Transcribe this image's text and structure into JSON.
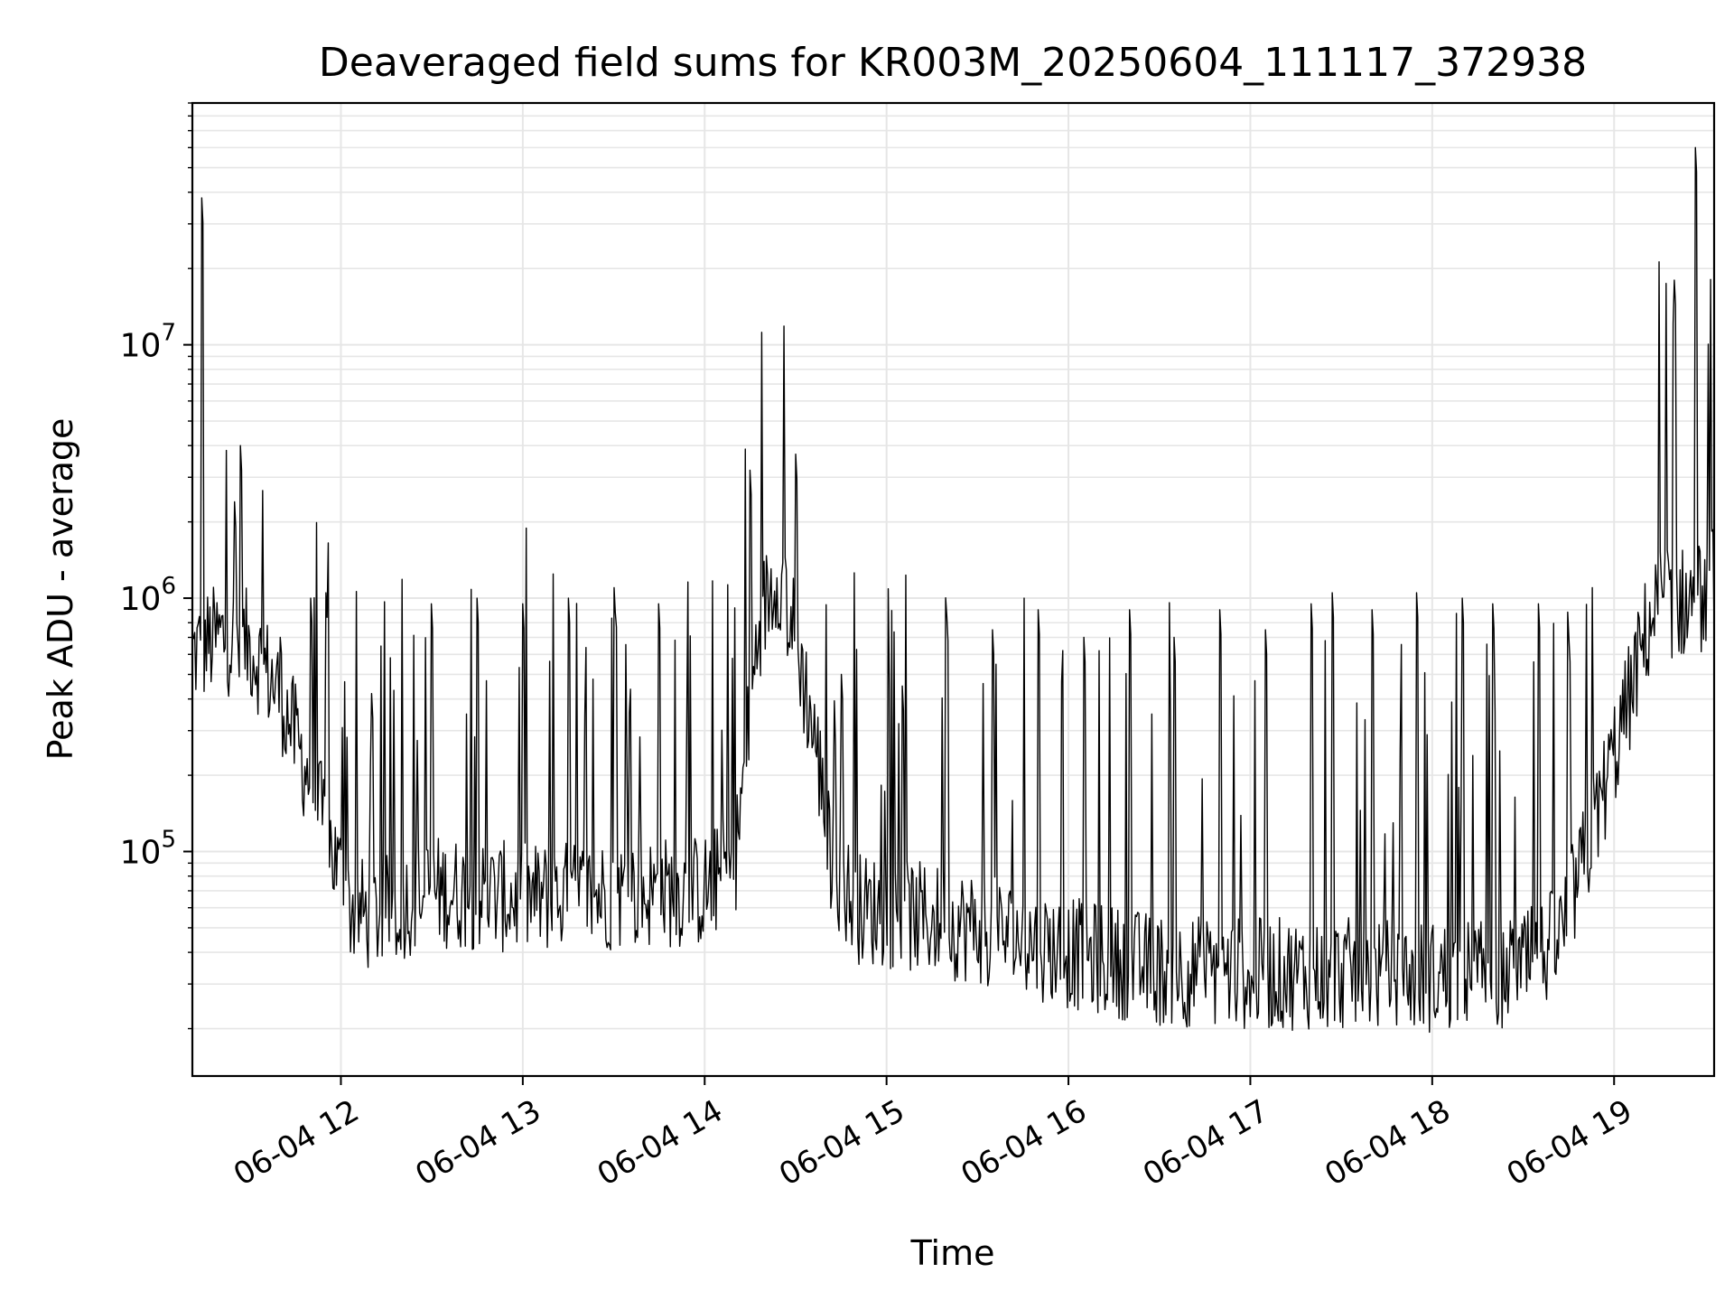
{
  "chart_data": {
    "type": "line",
    "title": "Deaveraged field sums for KR003M_20250604_111117_372938",
    "xlabel": "Time",
    "ylabel": "Peak ADU - average",
    "y_scale": "log",
    "grid": true,
    "grid_minor": true,
    "line_color": "#000000",
    "xlim": [
      "2025-06-04 11:11",
      "2025-06-04 19:33"
    ],
    "ylim": [
      13000,
      90000000
    ],
    "x_ticks": [
      {
        "value": "2025-06-04 12:00",
        "label": "06-04 12"
      },
      {
        "value": "2025-06-04 13:00",
        "label": "06-04 13"
      },
      {
        "value": "2025-06-04 14:00",
        "label": "06-04 14"
      },
      {
        "value": "2025-06-04 15:00",
        "label": "06-04 15"
      },
      {
        "value": "2025-06-04 16:00",
        "label": "06-04 16"
      },
      {
        "value": "2025-06-04 17:00",
        "label": "06-04 17"
      },
      {
        "value": "2025-06-04 18:00",
        "label": "06-04 18"
      },
      {
        "value": "2025-06-04 19:00",
        "label": "06-04 19"
      }
    ],
    "y_ticks": [
      {
        "value": 100000,
        "base": "10",
        "exp": "5"
      },
      {
        "value": 1000000,
        "base": "10",
        "exp": "6"
      },
      {
        "value": 10000000,
        "base": "10",
        "exp": "7"
      }
    ],
    "series": [
      {
        "baseline": [
          {
            "x": "2025-06-04 11:11",
            "y": 600000
          },
          {
            "x": "2025-06-04 11:20",
            "y": 700000
          },
          {
            "x": "2025-06-04 11:30",
            "y": 650000
          },
          {
            "x": "2025-06-04 11:40",
            "y": 420000
          },
          {
            "x": "2025-06-04 11:48",
            "y": 220000
          },
          {
            "x": "2025-06-04 11:55",
            "y": 120000
          },
          {
            "x": "2025-06-04 12:03",
            "y": 60000
          },
          {
            "x": "2025-06-04 12:10",
            "y": 55000
          },
          {
            "x": "2025-06-04 12:30",
            "y": 70000
          },
          {
            "x": "2025-06-04 13:00",
            "y": 65000
          },
          {
            "x": "2025-06-04 13:30",
            "y": 68000
          },
          {
            "x": "2025-06-04 14:00",
            "y": 70000
          },
          {
            "x": "2025-06-04 14:10",
            "y": 90000
          },
          {
            "x": "2025-06-04 14:18",
            "y": 800000
          },
          {
            "x": "2025-06-04 14:24",
            "y": 1300000
          },
          {
            "x": "2025-06-04 14:30",
            "y": 700000
          },
          {
            "x": "2025-06-04 14:37",
            "y": 250000
          },
          {
            "x": "2025-06-04 14:42",
            "y": 90000
          },
          {
            "x": "2025-06-04 14:50",
            "y": 60000
          },
          {
            "x": "2025-06-04 15:30",
            "y": 50000
          },
          {
            "x": "2025-06-04 16:00",
            "y": 40000
          },
          {
            "x": "2025-06-04 16:30",
            "y": 34000
          },
          {
            "x": "2025-06-04 17:00",
            "y": 33000
          },
          {
            "x": "2025-06-04 17:30",
            "y": 33000
          },
          {
            "x": "2025-06-04 18:00",
            "y": 32000
          },
          {
            "x": "2025-06-04 18:30",
            "y": 34000
          },
          {
            "x": "2025-06-04 18:42",
            "y": 45000
          },
          {
            "x": "2025-06-04 18:50",
            "y": 90000
          },
          {
            "x": "2025-06-04 18:58",
            "y": 200000
          },
          {
            "x": "2025-06-04 19:05",
            "y": 400000
          },
          {
            "x": "2025-06-04 19:10",
            "y": 700000
          },
          {
            "x": "2025-06-04 19:15",
            "y": 1000000
          },
          {
            "x": "2025-06-04 19:20",
            "y": 950000
          },
          {
            "x": "2025-06-04 19:30",
            "y": 1000000
          },
          {
            "x": "2025-06-04 19:33",
            "y": 1200000
          }
        ],
        "spikes": [
          {
            "x": "2025-06-04 11:14",
            "y": 38000000
          },
          {
            "x": "2025-06-04 11:25",
            "y": 2400000
          },
          {
            "x": "2025-06-04 11:27",
            "y": 4000000
          },
          {
            "x": "2025-06-04 11:40",
            "y": 700000
          },
          {
            "x": "2025-06-04 11:50",
            "y": 1000000
          },
          {
            "x": "2025-06-04 11:55",
            "y": 1050000
          },
          {
            "x": "2025-06-04 12:10",
            "y": 420000
          },
          {
            "x": "2025-06-04 12:30",
            "y": 950000
          },
          {
            "x": "2025-06-04 12:45",
            "y": 1000000
          },
          {
            "x": "2025-06-04 13:00",
            "y": 950000
          },
          {
            "x": "2025-06-04 13:15",
            "y": 1000000
          },
          {
            "x": "2025-06-04 13:30",
            "y": 1100000
          },
          {
            "x": "2025-06-04 13:45",
            "y": 950000
          },
          {
            "x": "2025-06-04 14:15",
            "y": 3200000
          },
          {
            "x": "2025-06-04 14:30",
            "y": 3700000
          },
          {
            "x": "2025-06-04 14:45",
            "y": 500000
          },
          {
            "x": "2025-06-04 15:05",
            "y": 450000
          },
          {
            "x": "2025-06-04 15:20",
            "y": 850000
          },
          {
            "x": "2025-06-04 15:35",
            "y": 750000
          },
          {
            "x": "2025-06-04 15:50",
            "y": 900000
          },
          {
            "x": "2025-06-04 16:05",
            "y": 700000
          },
          {
            "x": "2025-06-04 16:20",
            "y": 900000
          },
          {
            "x": "2025-06-04 16:35",
            "y": 700000
          },
          {
            "x": "2025-06-04 16:50",
            "y": 900000
          },
          {
            "x": "2025-06-04 17:05",
            "y": 750000
          },
          {
            "x": "2025-06-04 17:20",
            "y": 950000
          },
          {
            "x": "2025-06-04 17:27",
            "y": 1050000
          },
          {
            "x": "2025-06-04 17:40",
            "y": 900000
          },
          {
            "x": "2025-06-04 17:55",
            "y": 1050000
          },
          {
            "x": "2025-06-04 18:10",
            "y": 1000000
          },
          {
            "x": "2025-06-04 18:20",
            "y": 950000
          },
          {
            "x": "2025-06-04 18:35",
            "y": 950000
          },
          {
            "x": "2025-06-04 18:45",
            "y": 700000
          },
          {
            "x": "2025-06-04 19:20",
            "y": 18000000
          },
          {
            "x": "2025-06-04 19:27",
            "y": 60000000
          }
        ]
      }
    ]
  }
}
